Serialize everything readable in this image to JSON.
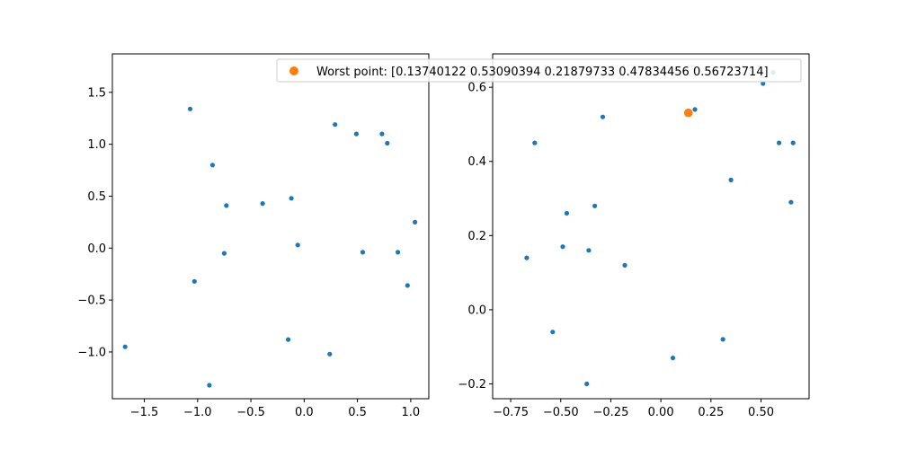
{
  "chart_data": [
    {
      "type": "scatter",
      "title": "",
      "xlabel": "",
      "ylabel": "",
      "xlim": [
        -1.8,
        1.17
      ],
      "ylim": [
        -1.45,
        1.87
      ],
      "xticks": [
        -1.5,
        -1.0,
        -0.5,
        0.0,
        0.5,
        1.0
      ],
      "xtick_labels": [
        "−1.5",
        "−1.0",
        "−0.5",
        "0.0",
        "0.5",
        "1.0"
      ],
      "yticks": [
        -1.0,
        -0.5,
        0.0,
        0.5,
        1.0,
        1.5
      ],
      "ytick_labels": [
        "−1.0",
        "−0.5",
        "0.0",
        "0.5",
        "1.0",
        "1.5"
      ],
      "grid": false,
      "series": [
        {
          "color": "#1f77b4",
          "points": [
            {
              "x": -1.07,
              "y": 1.34
            },
            {
              "x": 0.29,
              "y": 1.19
            },
            {
              "x": 0.49,
              "y": 1.1
            },
            {
              "x": 0.73,
              "y": 1.1
            },
            {
              "x": 0.78,
              "y": 1.01
            },
            {
              "x": -0.86,
              "y": 0.8
            },
            {
              "x": -0.12,
              "y": 0.48
            },
            {
              "x": -0.39,
              "y": 0.43
            },
            {
              "x": -0.73,
              "y": 0.41
            },
            {
              "x": 1.04,
              "y": 0.25
            },
            {
              "x": -0.06,
              "y": 0.03
            },
            {
              "x": -0.75,
              "y": -0.05
            },
            {
              "x": 0.55,
              "y": -0.04
            },
            {
              "x": 0.88,
              "y": -0.04
            },
            {
              "x": -1.03,
              "y": -0.32
            },
            {
              "x": 0.97,
              "y": -0.36
            },
            {
              "x": -0.15,
              "y": -0.88
            },
            {
              "x": -1.68,
              "y": -0.95
            },
            {
              "x": 0.24,
              "y": -1.02
            },
            {
              "x": -0.89,
              "y": -1.32
            }
          ]
        }
      ]
    },
    {
      "type": "scatter",
      "title": "",
      "xlabel": "",
      "ylabel": "",
      "xlim": [
        -0.84,
        0.74
      ],
      "ylim": [
        -0.24,
        0.69
      ],
      "xticks": [
        -0.75,
        -0.5,
        -0.25,
        0.0,
        0.25,
        0.5
      ],
      "xtick_labels": [
        "−0.75",
        "−0.50",
        "−0.25",
        "0.00",
        "0.25",
        "0.50"
      ],
      "yticks": [
        -0.2,
        0.0,
        0.2,
        0.4,
        0.6
      ],
      "ytick_labels": [
        "−0.2",
        "0.0",
        "0.2",
        "0.4",
        "0.6"
      ],
      "grid": false,
      "legend_placement": "upper-right, overlapping both panels",
      "series": [
        {
          "color": "#1f77b4",
          "points": [
            {
              "x": 0.56,
              "y": 0.64
            },
            {
              "x": 0.51,
              "y": 0.61
            },
            {
              "x": 0.17,
              "y": 0.54
            },
            {
              "x": -0.29,
              "y": 0.52
            },
            {
              "x": -0.63,
              "y": 0.45
            },
            {
              "x": 0.59,
              "y": 0.45
            },
            {
              "x": 0.66,
              "y": 0.45
            },
            {
              "x": 0.35,
              "y": 0.35
            },
            {
              "x": 0.65,
              "y": 0.29
            },
            {
              "x": -0.33,
              "y": 0.28
            },
            {
              "x": -0.47,
              "y": 0.26
            },
            {
              "x": -0.49,
              "y": 0.17
            },
            {
              "x": -0.36,
              "y": 0.16
            },
            {
              "x": -0.67,
              "y": 0.14
            },
            {
              "x": -0.18,
              "y": 0.12
            },
            {
              "x": -0.54,
              "y": -0.06
            },
            {
              "x": 0.31,
              "y": -0.08
            },
            {
              "x": 0.06,
              "y": -0.13
            },
            {
              "x": -0.37,
              "y": -0.2
            }
          ]
        },
        {
          "name": "Worst point: [0.13740122 0.53090394 0.21879733 0.47834456 0.56723714]",
          "color": "#ff7f0e",
          "points": [
            {
              "x": 0.1374,
              "y": 0.5309
            }
          ]
        }
      ]
    }
  ]
}
